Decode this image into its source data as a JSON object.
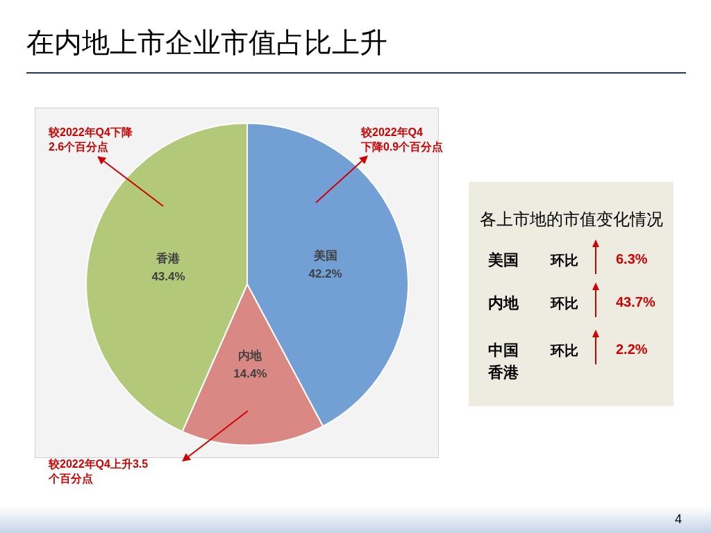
{
  "chart_data": [
    {
      "type": "pie",
      "title": "在内地上市企业市值占比上升",
      "categories": [
        "美国",
        "内地",
        "香港"
      ],
      "values": [
        42.2,
        14.4,
        43.4
      ],
      "colors": [
        "#729fd4",
        "#d98883",
        "#b3c97a"
      ],
      "value_labels": [
        "42.2%",
        "14.4%",
        "43.4%"
      ],
      "legend": false,
      "annotations": [
        "较2022年Q4\n下降0.9个百分点",
        "较2022年Q4上升3.5\n个百分点",
        "较2022年Q4下降\n2.6个百分点",
        "4"
      ]
    },
    {
      "type": "other",
      "title": "各上市地的市值变化情况",
      "categories": [
        "美国",
        "内地",
        "中国香港"
      ],
      "values": [
        6.3,
        43.7,
        2.2
      ],
      "value_labels": [
        "6.3%",
        "43.7%",
        "2.2%"
      ],
      "annotations": [
        "环比",
        "环比",
        "环比"
      ]
    }
  ]
}
